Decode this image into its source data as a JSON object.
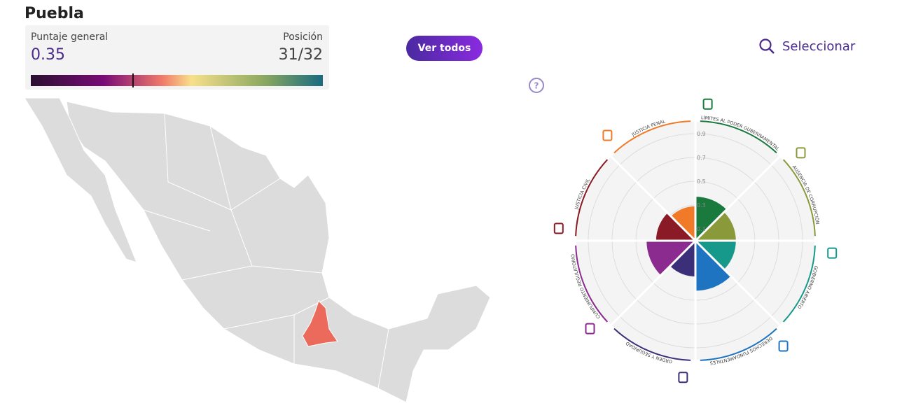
{
  "header": {
    "state": "Puebla"
  },
  "score_panel": {
    "score_label": "Puntaje general",
    "score": 0.35,
    "position_label": "Posición",
    "position": "31/32",
    "scale_lim": [
      0,
      1
    ]
  },
  "buttons": {
    "view_all": "Ver todos",
    "select": "Seleccionar"
  },
  "help": "?",
  "chart_data": {
    "type": "polar-bar",
    "categories": [
      "LÍMITES AL PODER GUBERNAMENTAL",
      "AUSENCIA DE CORRUPCIÓN",
      "GOBIERNO ABIERTO",
      "DERECHOS FUNDAMENTALES",
      "ORDEN Y SEGURIDAD",
      "CUMPLIMIENTO REGULATORIO",
      "JUSTICIA CIVIL",
      "JUSTICIA PENAL"
    ],
    "values": [
      0.37,
      0.34,
      0.34,
      0.42,
      0.3,
      0.41,
      0.33,
      0.29
    ],
    "colors": [
      "#1a7a3e",
      "#8a9a3a",
      "#16998a",
      "#1f74c1",
      "#3c2f7a",
      "#8b2a8f",
      "#8a1a25",
      "#f07a28"
    ],
    "rlim": [
      0,
      1
    ],
    "rticks": [
      0.1,
      0.3,
      0.5,
      0.7,
      0.9
    ]
  }
}
